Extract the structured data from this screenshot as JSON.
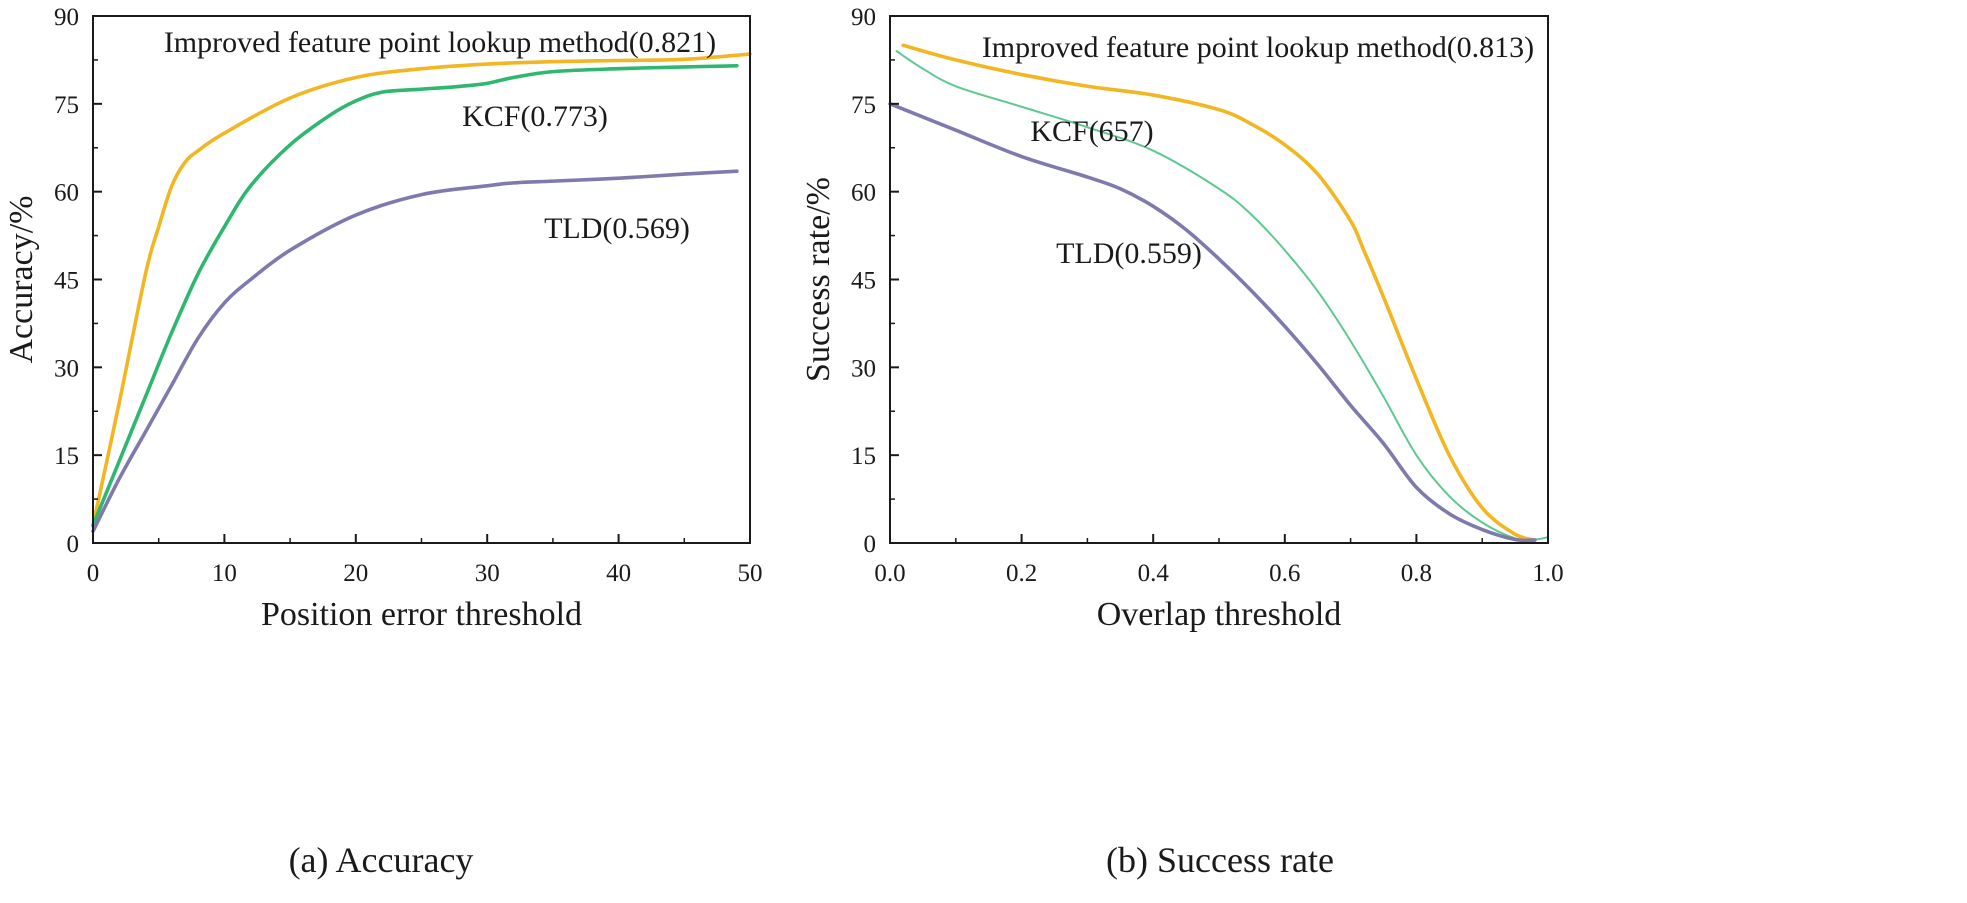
{
  "chart_data": [
    {
      "type": "line",
      "caption": "(a) Accuracy",
      "xlabel": "Position error threshold",
      "ylabel": "Accuracy/%",
      "xlim": [
        0,
        50
      ],
      "ylim": [
        0,
        90
      ],
      "xticks": [
        0,
        10,
        20,
        30,
        40,
        50
      ],
      "yticks": [
        0,
        15,
        30,
        45,
        60,
        75,
        90
      ],
      "grid": false,
      "series": [
        {
          "name": "Improved feature point lookup method(0.821)",
          "color": "#f2b623",
          "x": [
            0,
            2,
            4,
            5,
            6,
            7,
            8,
            10,
            15,
            20,
            25,
            30,
            35,
            40,
            45,
            50
          ],
          "y": [
            3,
            24,
            46,
            54,
            61,
            65,
            67,
            70,
            76,
            79.5,
            81,
            81.8,
            82.2,
            82.4,
            82.6,
            83.5
          ]
        },
        {
          "name": "KCF(0.773)",
          "color": "#2db76f",
          "x": [
            0,
            2,
            4,
            6,
            8,
            10,
            12,
            15,
            18,
            20,
            22,
            25,
            28,
            30,
            32,
            35,
            40,
            45,
            49
          ],
          "y": [
            3,
            14,
            25,
            36,
            46,
            54,
            61,
            68,
            73,
            75.5,
            77,
            77.5,
            78,
            78.5,
            79.5,
            80.5,
            81,
            81.3,
            81.5
          ]
        },
        {
          "name": "TLD(0.569)",
          "color": "#7f7aad",
          "x": [
            0,
            2,
            4,
            6,
            8,
            10,
            12,
            15,
            20,
            25,
            30,
            32,
            35,
            40,
            45,
            49
          ],
          "y": [
            2,
            11,
            19,
            27,
            35,
            41,
            45,
            50,
            56,
            59.5,
            61,
            61.5,
            61.8,
            62.3,
            63,
            63.5
          ]
        }
      ]
    },
    {
      "type": "line",
      "caption": "(b) Success rate",
      "xlabel": "Overlap threshold",
      "ylabel": "Success rate/%",
      "xlim": [
        0,
        1
      ],
      "ylim": [
        0,
        90
      ],
      "xticks": [
        0,
        0.2,
        0.4,
        0.6,
        0.8,
        1.0
      ],
      "xtick_labels": [
        "0.0",
        "0.2",
        "0.4",
        "0.6",
        "0.8",
        "1.0"
      ],
      "yticks": [
        0,
        15,
        30,
        45,
        60,
        75,
        90
      ],
      "grid": false,
      "series": [
        {
          "name": "Improved feature point lookup method(0.813)",
          "color": "#f2b623",
          "x": [
            0.02,
            0.1,
            0.2,
            0.3,
            0.4,
            0.5,
            0.55,
            0.6,
            0.65,
            0.7,
            0.72,
            0.75,
            0.8,
            0.85,
            0.9,
            0.95,
            0.98
          ],
          "y": [
            85,
            82.5,
            80,
            78,
            76.5,
            74,
            71.5,
            68,
            63,
            55,
            50,
            42,
            28,
            15,
            6,
            1.5,
            0.5
          ]
        },
        {
          "name": "KCF(657)",
          "color": "#5fc890",
          "x": [
            0.01,
            0.05,
            0.1,
            0.2,
            0.3,
            0.4,
            0.5,
            0.55,
            0.6,
            0.65,
            0.7,
            0.75,
            0.8,
            0.85,
            0.9,
            0.95,
            0.98,
            1.0
          ],
          "y": [
            84,
            81,
            78,
            74.5,
            71,
            67,
            60.5,
            56,
            50,
            43,
            34.5,
            25,
            15,
            8,
            3.5,
            0.8,
            0.6,
            1
          ]
        },
        {
          "name": "TLD(0.559)",
          "color": "#7f7aad",
          "x": [
            0.0,
            0.1,
            0.2,
            0.3,
            0.35,
            0.4,
            0.45,
            0.5,
            0.55,
            0.6,
            0.65,
            0.7,
            0.75,
            0.8,
            0.85,
            0.9,
            0.95,
            0.98
          ],
          "y": [
            75,
            70.5,
            66,
            62.5,
            60.5,
            57.5,
            53.5,
            48.5,
            43,
            37,
            30.5,
            23.5,
            17,
            9.5,
            5,
            2.3,
            0.6,
            0.5
          ]
        }
      ]
    }
  ]
}
